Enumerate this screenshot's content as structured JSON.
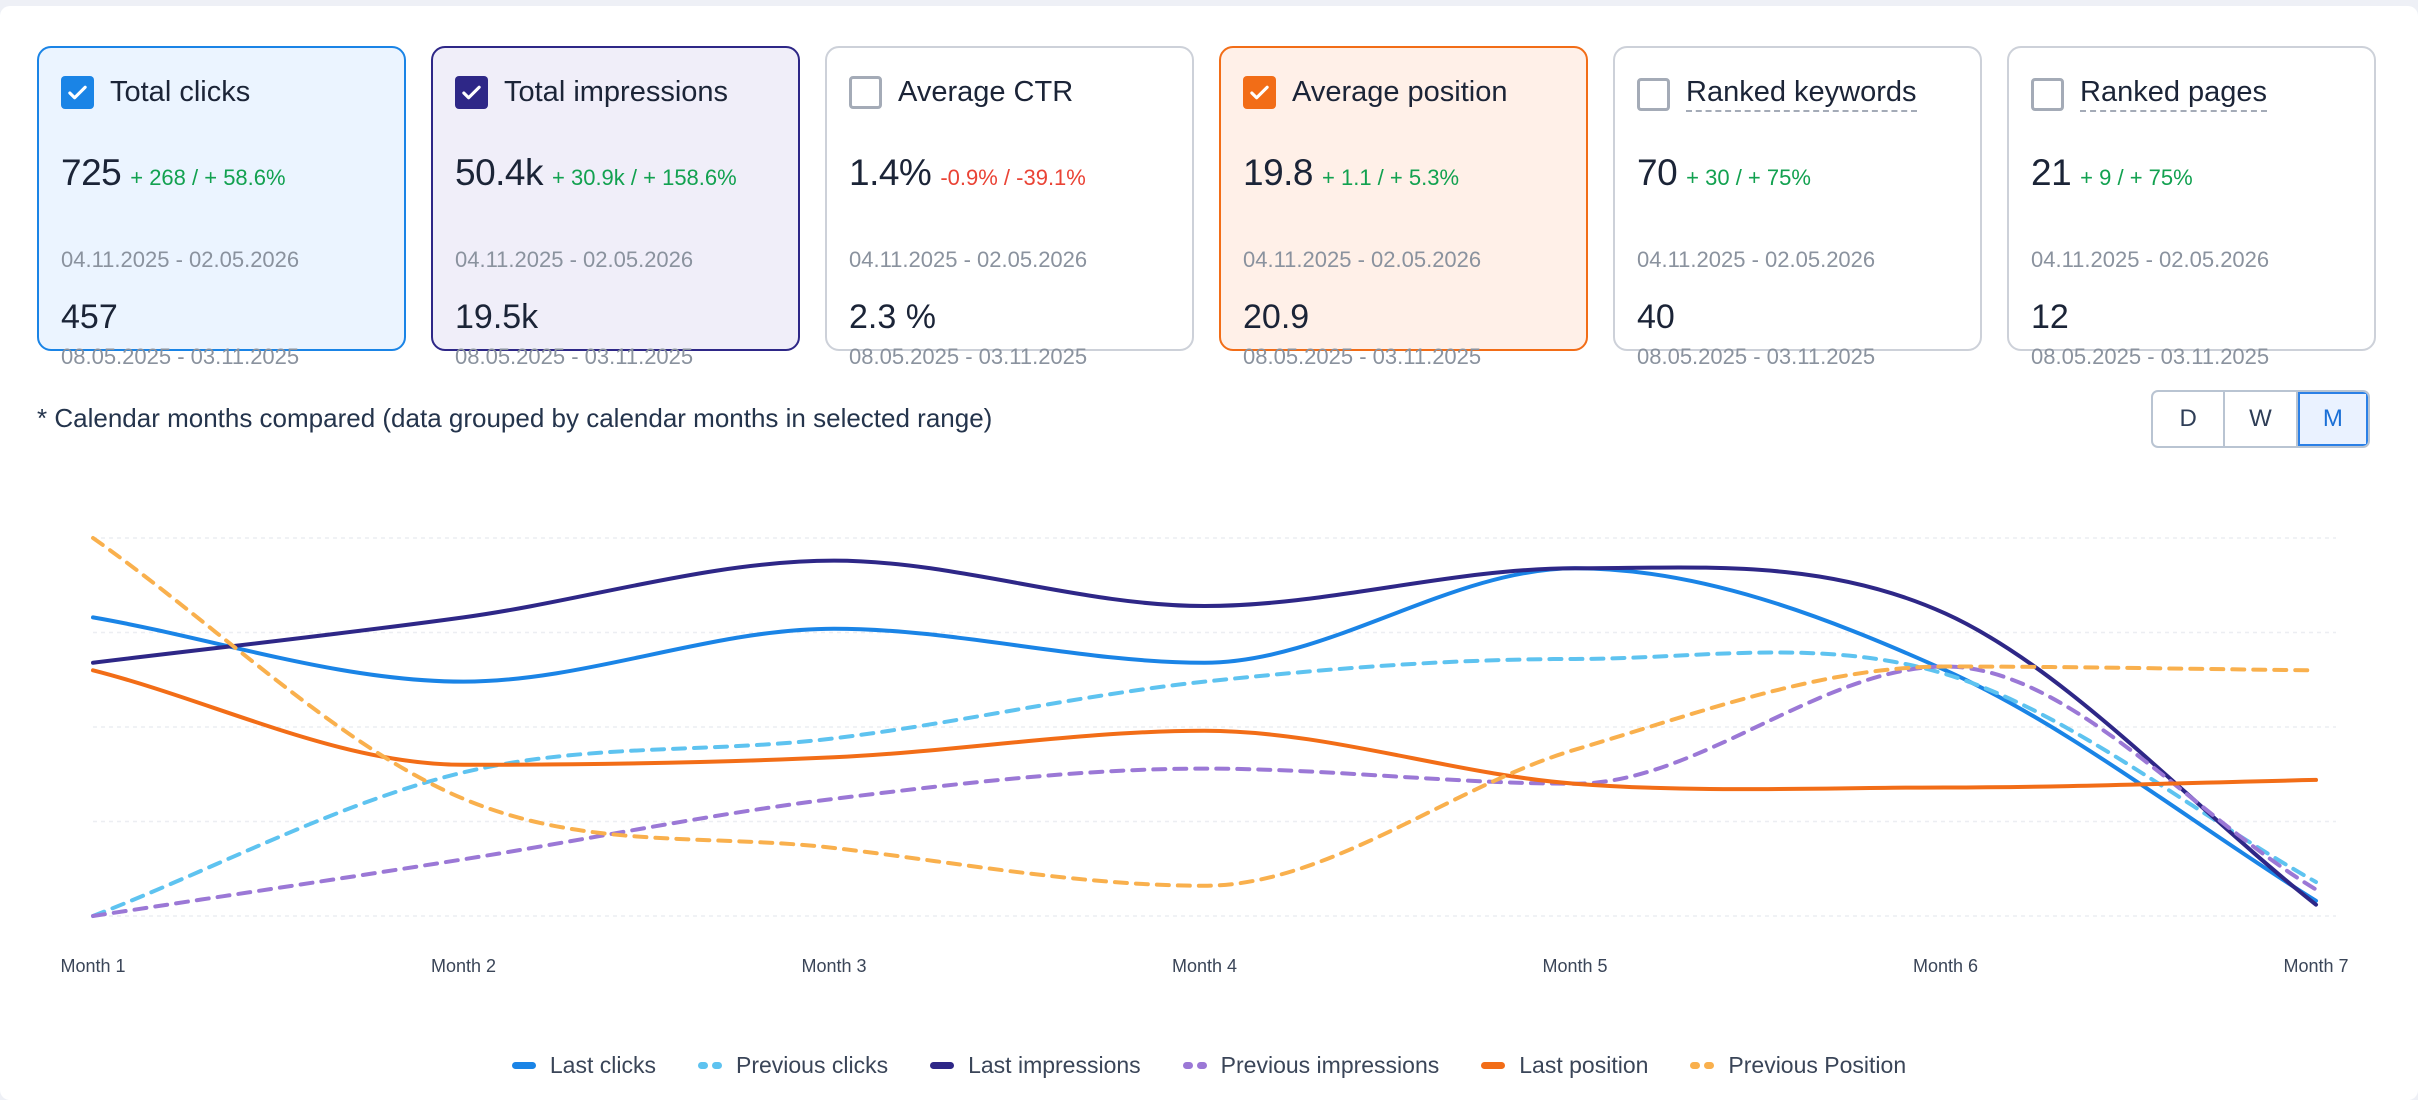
{
  "cards": [
    {
      "title": "Total clicks",
      "checked": true,
      "theme": "blue",
      "check_color": "#1a84e6",
      "dashed": false,
      "current": "725",
      "delta": "+ 268 / + 58.6%",
      "delta_dir": "up",
      "current_range": "04.11.2025 - 02.05.2026",
      "previous": "457",
      "previous_range": "08.05.2025 - 03.11.2025"
    },
    {
      "title": "Total impressions",
      "checked": true,
      "theme": "indigo",
      "check_color": "#2e2787",
      "dashed": false,
      "current": "50.4k",
      "delta": "+ 30.9k / + 158.6%",
      "delta_dir": "up",
      "current_range": "04.11.2025 - 02.05.2026",
      "previous": "19.5k",
      "previous_range": "08.05.2025 - 03.11.2025"
    },
    {
      "title": "Average CTR",
      "checked": false,
      "theme": "plain",
      "check_color": "",
      "dashed": false,
      "current": "1.4%",
      "delta": "-0.9% / -39.1%",
      "delta_dir": "down",
      "current_range": "04.11.2025 - 02.05.2026",
      "previous": "2.3 %",
      "previous_range": "08.05.2025 - 03.11.2025"
    },
    {
      "title": "Average position",
      "checked": true,
      "theme": "orange",
      "check_color": "#f26d17",
      "dashed": false,
      "current": "19.8",
      "delta": "+ 1.1 / + 5.3%",
      "delta_dir": "up",
      "current_range": "04.11.2025 - 02.05.2026",
      "previous": "20.9",
      "previous_range": "08.05.2025 - 03.11.2025"
    },
    {
      "title": "Ranked keywords",
      "checked": false,
      "theme": "plain",
      "check_color": "",
      "dashed": true,
      "current": "70",
      "delta": "+ 30 / + 75%",
      "delta_dir": "up",
      "current_range": "04.11.2025 - 02.05.2026",
      "previous": "40",
      "previous_range": "08.05.2025 - 03.11.2025"
    },
    {
      "title": "Ranked pages",
      "checked": false,
      "theme": "plain",
      "check_color": "",
      "dashed": true,
      "current": "21",
      "delta": "+ 9 / + 75%",
      "delta_dir": "up",
      "current_range": "04.11.2025 - 02.05.2026",
      "previous": "12",
      "previous_range": "08.05.2025 - 03.11.2025"
    }
  ],
  "note": "* Calendar months compared (data grouped by calendar months in selected range)",
  "granularity": {
    "options": [
      "D",
      "W",
      "M"
    ],
    "selected": "M"
  },
  "chart_data": {
    "type": "line",
    "x": [
      "Month 1",
      "Month 2",
      "Month 3",
      "Month 4",
      "Month 5",
      "Month 6",
      "Month 7"
    ],
    "y_axis_labels_shown": false,
    "grid": "horizontal dashed",
    "legend_position": "bottom",
    "note": "values are relative (normalized 0-100); y-axis has no printed labels",
    "series": [
      {
        "name": "Last clicks",
        "color": "#1a84e6",
        "dash": false,
        "values": [
          79,
          62,
          76,
          67,
          92,
          65,
          4
        ]
      },
      {
        "name": "Previous clicks",
        "color": "#5ec3f0",
        "dash": true,
        "values": [
          0,
          38,
          47,
          62,
          68,
          64,
          9
        ]
      },
      {
        "name": "Last impressions",
        "color": "#2e2787",
        "dash": false,
        "values": [
          67,
          79,
          94,
          82,
          92,
          80,
          3
        ]
      },
      {
        "name": "Previous impressions",
        "color": "#9b78d6",
        "dash": true,
        "values": [
          0,
          15,
          31,
          39,
          35,
          66,
          7
        ]
      },
      {
        "name": "Last position",
        "color": "#f26d17",
        "dash": false,
        "values": [
          65,
          40,
          42,
          49,
          35,
          34,
          36
        ]
      },
      {
        "name": "Previous Position",
        "color": "#f9b04d",
        "dash": true,
        "values": [
          100,
          31,
          18,
          8,
          44,
          66,
          65
        ]
      }
    ]
  }
}
